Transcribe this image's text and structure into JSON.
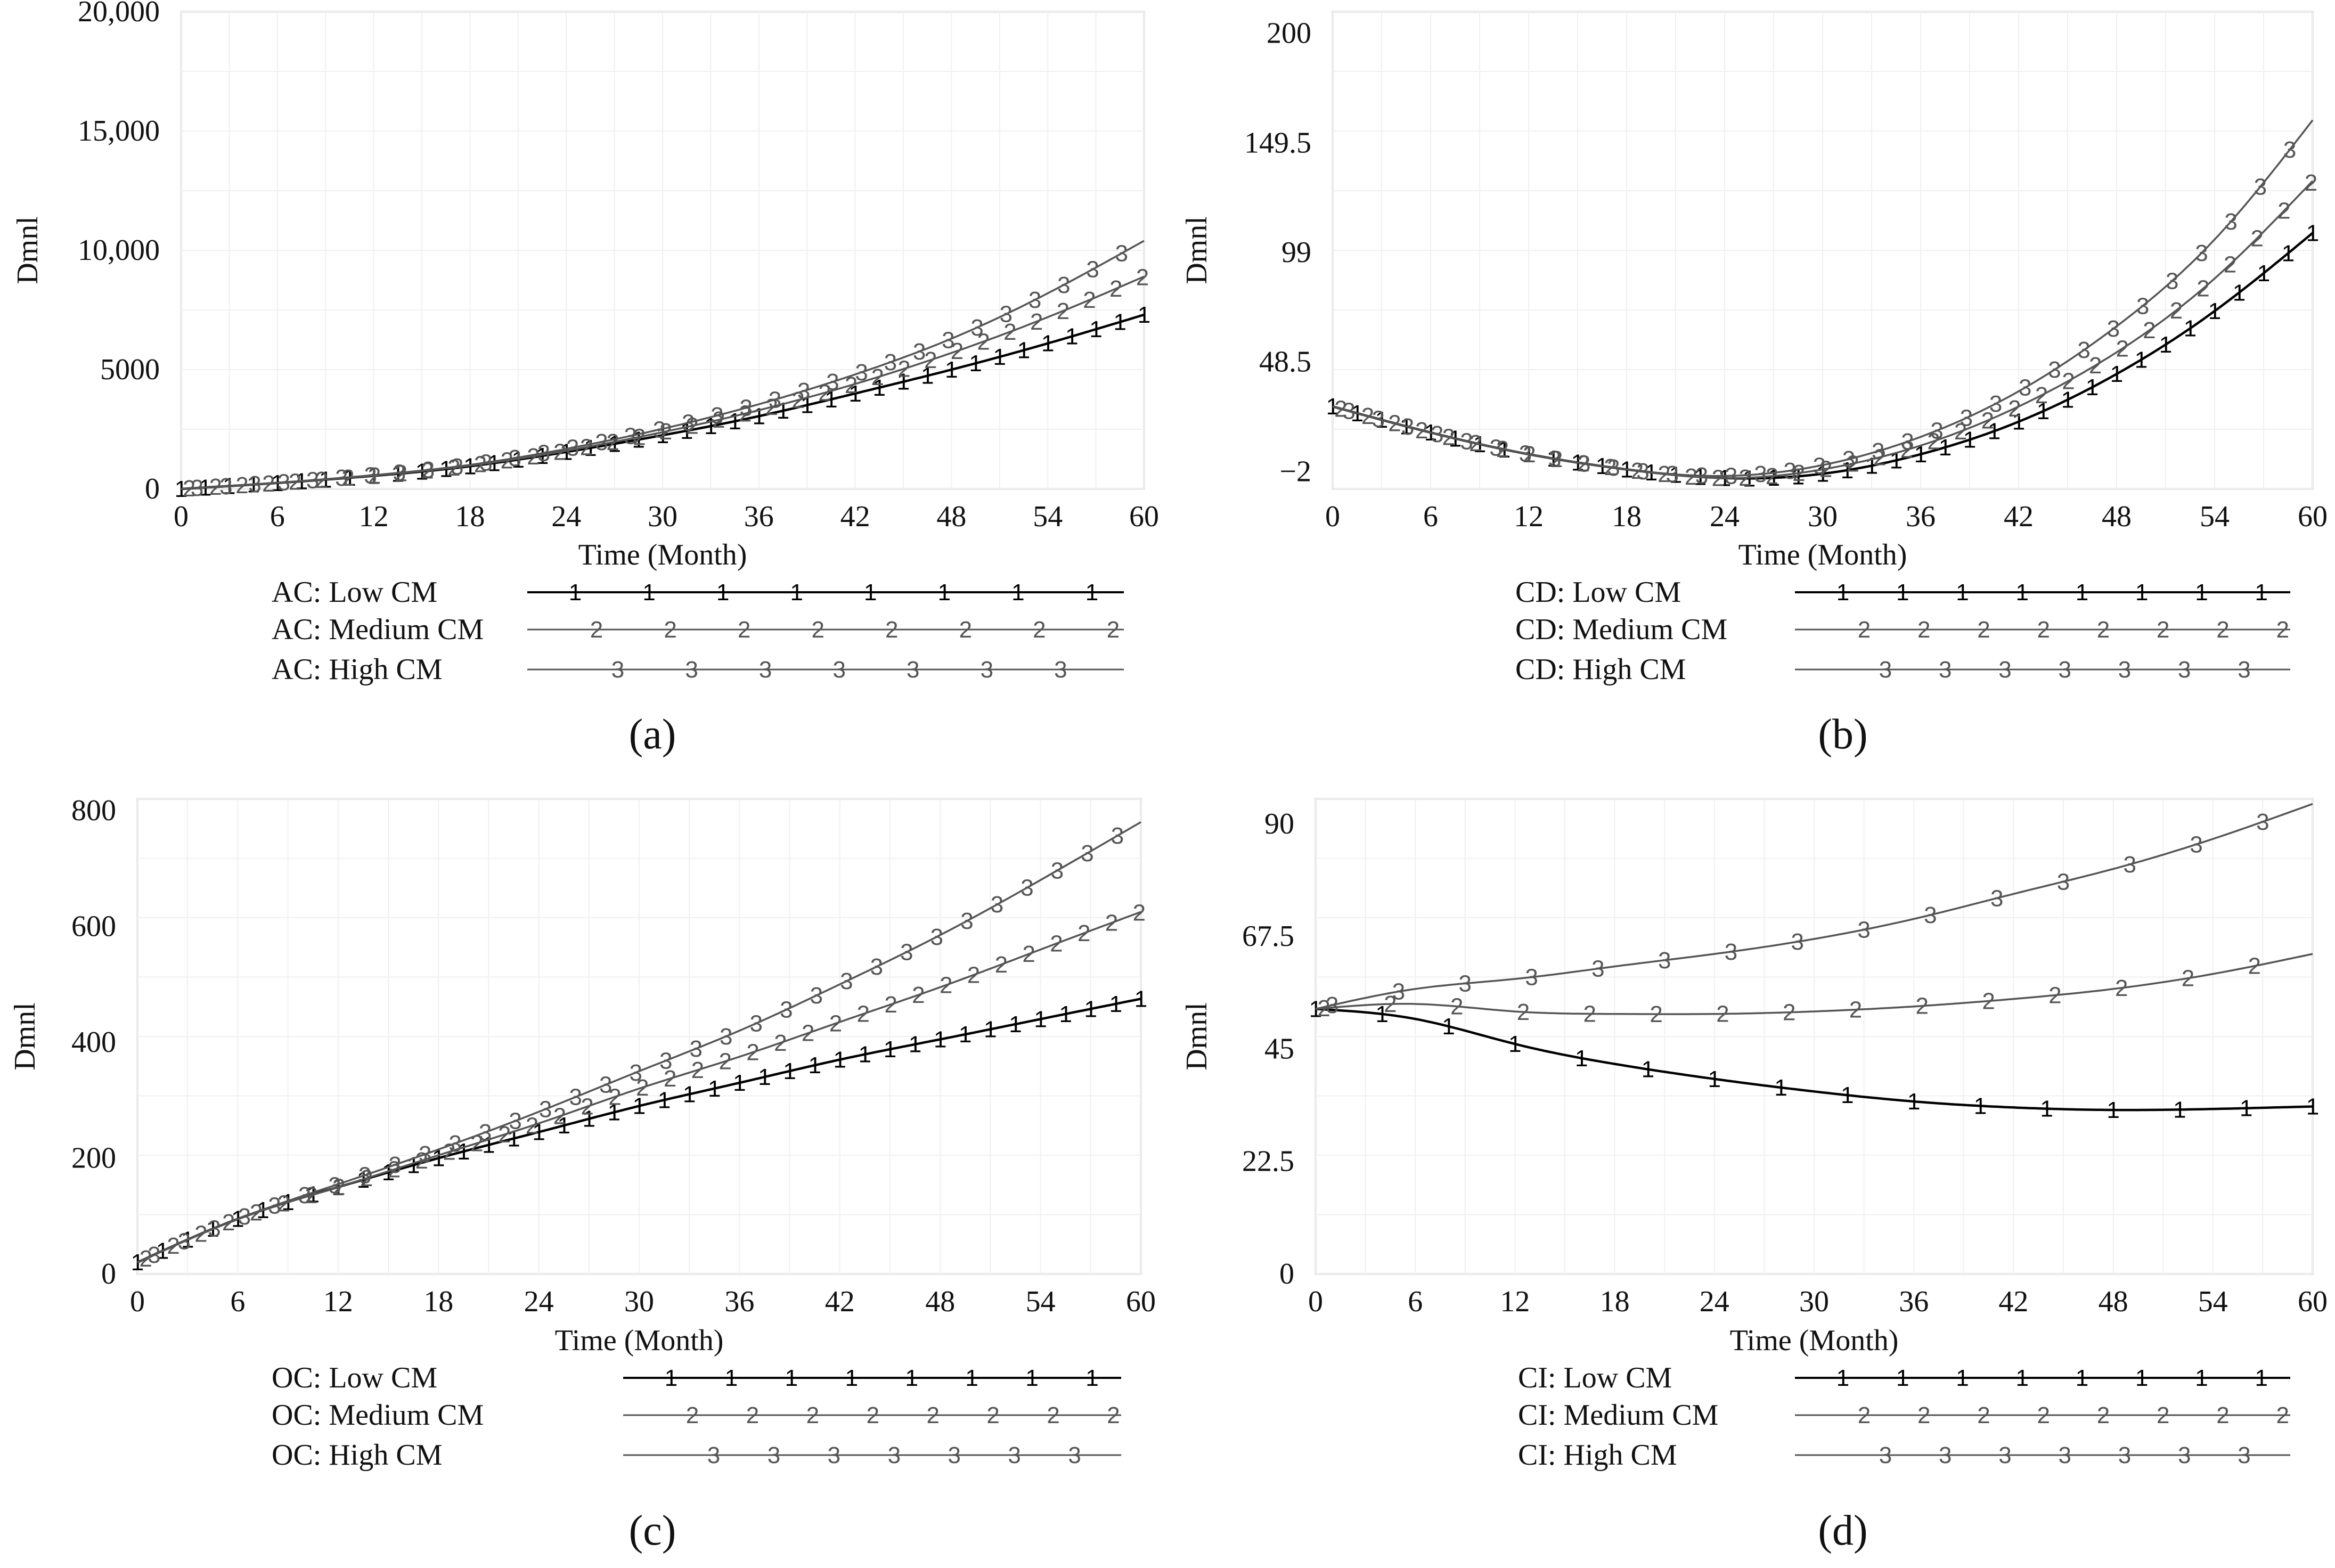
{
  "chart_data": [
    {
      "type": "line",
      "panel_label": "(a)",
      "xlabel": "Time (Month)",
      "ylabel": "Dmnl",
      "xlim": [
        0,
        60
      ],
      "ylim": [
        0,
        20000
      ],
      "xticks": [
        0,
        6,
        12,
        18,
        24,
        30,
        36,
        42,
        48,
        54,
        60
      ],
      "x_tick_labels": [
        "0",
        "6",
        "12",
        "18",
        "24",
        "30",
        "36",
        "42",
        "48",
        "54",
        "60"
      ],
      "yticks": [
        0,
        5000,
        10000,
        15000,
        20000
      ],
      "y_tick_labels": [
        "0",
        "5000",
        "10,000",
        "15,000",
        "20,000"
      ],
      "x": [
        0,
        6,
        12,
        18,
        24,
        30,
        36,
        42,
        48,
        54,
        60
      ],
      "series": [
        {
          "name": "AC: Low CM",
          "marker": "1",
          "color": "#000000",
          "values": [
            0,
            250,
            550,
            950,
            1550,
            2250,
            3050,
            4000,
            5000,
            6100,
            7300
          ]
        },
        {
          "name": "AC: Medium CM",
          "marker": "2",
          "color": "#555555",
          "values": [
            0,
            250,
            560,
            980,
            1600,
            2380,
            3300,
            4400,
            5700,
            7200,
            8900
          ]
        },
        {
          "name": "AC: High CM",
          "marker": "3",
          "color": "#555555",
          "values": [
            0,
            260,
            580,
            1010,
            1680,
            2520,
            3550,
            4800,
            6300,
            8200,
            10400
          ]
        }
      ]
    },
    {
      "type": "line",
      "panel_label": "(b)",
      "xlabel": "Time (Month)",
      "ylabel": "Dmnl",
      "xlim": [
        0,
        60
      ],
      "ylim": [
        -10,
        210
      ],
      "xticks": [
        0,
        6,
        12,
        18,
        24,
        30,
        36,
        42,
        48,
        54,
        60
      ],
      "x_tick_labels": [
        "0",
        "6",
        "12",
        "18",
        "24",
        "30",
        "36",
        "42",
        "48",
        "54",
        "60"
      ],
      "yticks": [
        -2,
        48.5,
        99,
        149.5,
        200
      ],
      "y_tick_labels": [
        "−2",
        "48.5",
        "99",
        "149.5",
        "200"
      ],
      "x": [
        0,
        6,
        12,
        18,
        24,
        30,
        36,
        42,
        48,
        54,
        60
      ],
      "series": [
        {
          "name": "CD: Low CM",
          "marker": "1",
          "color": "#000000",
          "values": [
            28,
            16,
            6,
            -1,
            -5,
            -3,
            6,
            21,
            43,
            72,
            108
          ]
        },
        {
          "name": "CD: Medium CM",
          "marker": "2",
          "color": "#555555",
          "values": [
            28,
            16,
            6,
            -1,
            -5,
            -1,
            10,
            28,
            53,
            87,
            132
          ]
        },
        {
          "name": "CD: High CM",
          "marker": "3",
          "color": "#555555",
          "values": [
            28,
            16,
            6,
            -1,
            -4,
            1,
            14,
            35,
            65,
            105,
            160
          ]
        }
      ]
    },
    {
      "type": "line",
      "panel_label": "(c)",
      "xlabel": "Time (Month)",
      "ylabel": "Dmnl",
      "xlim": [
        0,
        60
      ],
      "ylim": [
        0,
        820
      ],
      "xticks": [
        0,
        6,
        12,
        18,
        24,
        30,
        36,
        42,
        48,
        54,
        60
      ],
      "x_tick_labels": [
        "0",
        "6",
        "12",
        "18",
        "24",
        "30",
        "36",
        "42",
        "48",
        "54",
        "60"
      ],
      "yticks": [
        0,
        200,
        400,
        600,
        800
      ],
      "y_tick_labels": [
        "0",
        "200",
        "400",
        "600",
        "800"
      ],
      "x": [
        0,
        6,
        12,
        18,
        24,
        30,
        36,
        42,
        48,
        54,
        60
      ],
      "series": [
        {
          "name": "OC: Low CM",
          "marker": "1",
          "color": "#000000",
          "values": [
            20,
            95,
            150,
            200,
            245,
            290,
            330,
            370,
            405,
            440,
            475
          ]
        },
        {
          "name": "OC: Medium CM",
          "marker": "2",
          "color": "#555555",
          "values": [
            20,
            95,
            150,
            205,
            260,
            320,
            375,
            435,
            495,
            560,
            625
          ]
        },
        {
          "name": "OC: High CM",
          "marker": "3",
          "color": "#555555",
          "values": [
            20,
            95,
            155,
            215,
            280,
            350,
            420,
            500,
            585,
            680,
            780
          ]
        }
      ]
    },
    {
      "type": "line",
      "panel_label": "(d)",
      "xlabel": "Time (Month)",
      "ylabel": "Dmnl",
      "xlim": [
        0,
        60
      ],
      "ylim": [
        0,
        95
      ],
      "xticks": [
        0,
        6,
        12,
        18,
        24,
        30,
        36,
        42,
        48,
        54,
        60
      ],
      "x_tick_labels": [
        "0",
        "6",
        "12",
        "18",
        "24",
        "30",
        "36",
        "42",
        "48",
        "54",
        "60"
      ],
      "yticks": [
        0,
        22.5,
        45,
        67.5,
        90
      ],
      "y_tick_labels": [
        "0",
        "22.5",
        "45",
        "67.5",
        "90"
      ],
      "x": [
        0,
        6,
        12,
        18,
        24,
        30,
        36,
        42,
        48,
        54,
        60
      ],
      "series": [
        {
          "name": "CI: Low CM",
          "marker": "1",
          "color": "#000000",
          "values": [
            53,
            51,
            46,
            42,
            39,
            36.5,
            34.5,
            33.3,
            32.8,
            33,
            33.5
          ]
        },
        {
          "name": "CI: Medium CM",
          "marker": "2",
          "color": "#555555",
          "values": [
            53,
            54,
            52.5,
            52,
            52,
            52.5,
            53.5,
            55,
            57,
            60,
            64
          ]
        },
        {
          "name": "CI: High CM",
          "marker": "3",
          "color": "#555555",
          "values": [
            53,
            57,
            59,
            61.5,
            64,
            67,
            71,
            76,
            81,
            87,
            94
          ]
        }
      ]
    }
  ]
}
